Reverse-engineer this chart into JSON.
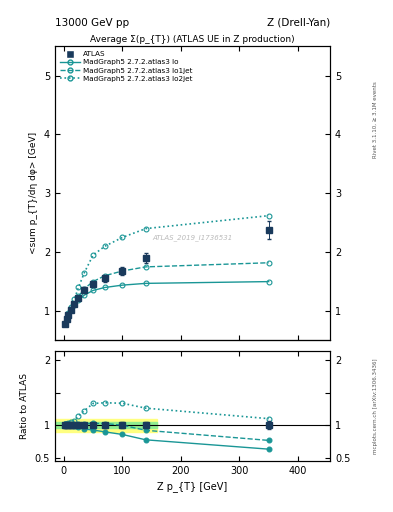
{
  "title_top": "13000 GeV pp",
  "title_top_right": "Z (Drell-Yan)",
  "title_main": "Average Σ(p_{T}) (ATLAS UE in Z production)",
  "watermark": "ATLAS_2019_I1736531",
  "xlabel": "Z p_{T} [GeV]",
  "ylabel_main": "<sum p_{T}/dη dφ> [GeV]",
  "ylabel_ratio": "Ratio to ATLAS",
  "right_label_top": "Rivet 3.1.10, ≥ 3.1M events",
  "right_label_bottom": "mcplots.cern.ch [arXiv:1306.3436]",
  "ylim_main": [
    0.5,
    5.5
  ],
  "ylim_ratio": [
    0.45,
    2.15
  ],
  "xlim": [
    -15,
    455
  ],
  "color": "#1a9696",
  "atlas_color": "#1a3a5c",
  "atlas_x": [
    2,
    5,
    8,
    13,
    18,
    25,
    35,
    50,
    70,
    100,
    140,
    350
  ],
  "atlas_y": [
    0.78,
    0.87,
    0.94,
    1.02,
    1.12,
    1.22,
    1.35,
    1.46,
    1.56,
    1.68,
    1.9,
    2.38
  ],
  "atlas_yerr": [
    0.03,
    0.03,
    0.03,
    0.04,
    0.04,
    0.04,
    0.05,
    0.05,
    0.06,
    0.07,
    0.08,
    0.15
  ],
  "lo_x": [
    2,
    5,
    8,
    13,
    18,
    25,
    35,
    50,
    70,
    100,
    140,
    350
  ],
  "lo_y": [
    0.8,
    0.88,
    0.95,
    1.03,
    1.1,
    1.18,
    1.27,
    1.35,
    1.4,
    1.44,
    1.47,
    1.5
  ],
  "lo1jet_x": [
    2,
    5,
    8,
    13,
    18,
    25,
    35,
    50,
    70,
    100,
    140,
    350
  ],
  "lo1jet_y": [
    0.79,
    0.87,
    0.94,
    1.02,
    1.12,
    1.25,
    1.38,
    1.5,
    1.6,
    1.68,
    1.75,
    1.82
  ],
  "lo2jet_x": [
    2,
    5,
    8,
    13,
    18,
    25,
    35,
    50,
    70,
    100,
    140,
    350
  ],
  "lo2jet_y": [
    0.8,
    0.88,
    0.97,
    1.07,
    1.2,
    1.4,
    1.65,
    1.95,
    2.1,
    2.25,
    2.4,
    2.62
  ],
  "ratio_lo_y": [
    1.026,
    1.011,
    1.011,
    1.01,
    0.982,
    0.967,
    0.941,
    0.925,
    0.897,
    0.857,
    0.774,
    0.63
  ],
  "ratio_lo1jet_y": [
    1.013,
    1.0,
    1.0,
    1.0,
    1.0,
    1.024,
    1.022,
    1.027,
    1.026,
    1.0,
    0.921,
    0.765
  ],
  "ratio_lo2jet_y": [
    1.026,
    1.011,
    1.032,
    1.049,
    1.071,
    1.148,
    1.222,
    1.336,
    1.346,
    1.339,
    1.263,
    1.101
  ],
  "band_xmax": 160,
  "atlas_band_inner": [
    0.95,
    1.05
  ],
  "atlas_band_outer": [
    0.9,
    1.1
  ],
  "xticks": [
    0,
    100,
    200,
    300,
    400
  ],
  "yticks_main": [
    1,
    2,
    3,
    4,
    5
  ],
  "yticks_ratio": [
    0.5,
    1.0,
    1.5,
    2.0
  ]
}
